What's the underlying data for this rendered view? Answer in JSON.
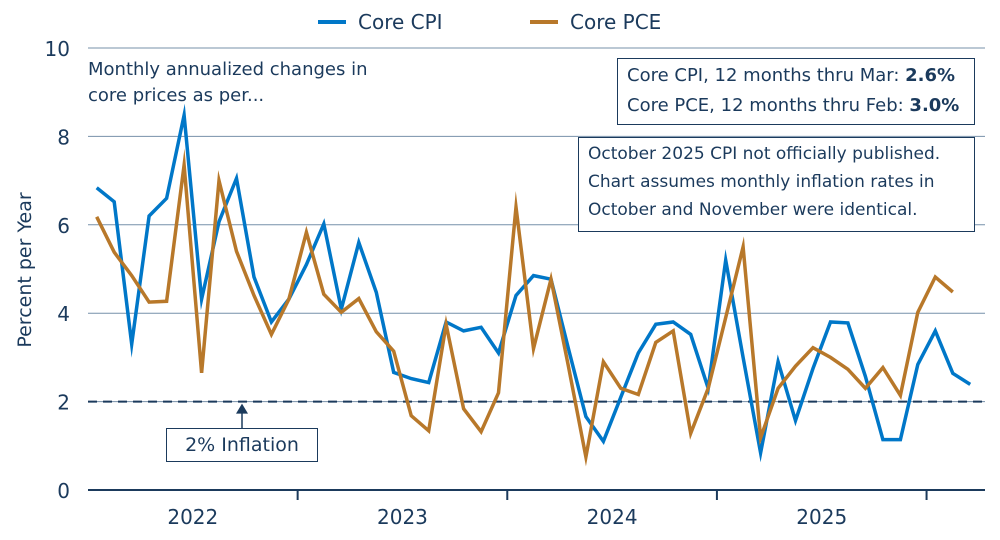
{
  "chart_data": {
    "type": "line",
    "title": "",
    "xlabel": "",
    "ylabel": "Percent per Year",
    "ylim": [
      0,
      10
    ],
    "yticks": [
      0,
      2,
      4,
      6,
      8,
      10
    ],
    "x_start": "2022-01",
    "x_tick_labels": [
      "2022",
      "2023",
      "2024",
      "2025"
    ],
    "grid": "horizontal",
    "legend_placement": "top-center",
    "series": [
      {
        "name": "Core CPI",
        "color": "#0077c8",
        "values": [
          6.84,
          6.52,
          3.3,
          6.2,
          6.6,
          8.48,
          4.32,
          6.07,
          7.05,
          4.82,
          3.8,
          4.32,
          5.1,
          6.02,
          4.09,
          5.6,
          4.47,
          2.66,
          2.52,
          2.43,
          3.8,
          3.6,
          3.68,
          3.1,
          4.4,
          4.85,
          4.77,
          3.2,
          1.66,
          1.1,
          2.1,
          3.1,
          3.75,
          3.8,
          3.52,
          2.3,
          5.2,
          3.0,
          0.84,
          2.9,
          1.57,
          2.75,
          3.8,
          3.78,
          2.57,
          1.14,
          1.14,
          2.84,
          3.6,
          2.64,
          2.39
        ]
      },
      {
        "name": "Core PCE",
        "color": "#b8782a",
        "values": [
          6.18,
          5.38,
          4.85,
          4.25,
          4.27,
          7.35,
          2.65,
          7.0,
          5.4,
          4.4,
          3.52,
          4.32,
          5.83,
          4.43,
          4.02,
          4.33,
          3.58,
          3.14,
          1.68,
          1.34,
          3.75,
          1.84,
          1.32,
          2.2,
          6.4,
          3.2,
          4.77,
          2.8,
          0.75,
          2.9,
          2.3,
          2.16,
          3.34,
          3.6,
          1.28,
          2.3,
          3.9,
          5.5,
          1.18,
          2.3,
          2.8,
          3.22,
          3.0,
          2.73,
          2.3,
          2.77,
          2.14,
          4.02,
          4.82,
          4.48
        ]
      }
    ],
    "reference_line": {
      "value": 2,
      "label": "2% Inflation",
      "color": "#1b3a5c"
    },
    "annotations": {
      "subtitle_line1": "Monthly annualized changes in",
      "subtitle_line2": "core prices as per...",
      "summary_cpi_label": "Core CPI, 12 months thru Mar: ",
      "summary_cpi_value": "2.6%",
      "summary_pce_label": "Core PCE, 12 months thru Feb: ",
      "summary_pce_value": "3.0%",
      "note_line1": "October 2025 CPI not officially published.",
      "note_line2": "Chart assumes monthly inflation rates in",
      "note_line3": "October and November were identical."
    }
  }
}
